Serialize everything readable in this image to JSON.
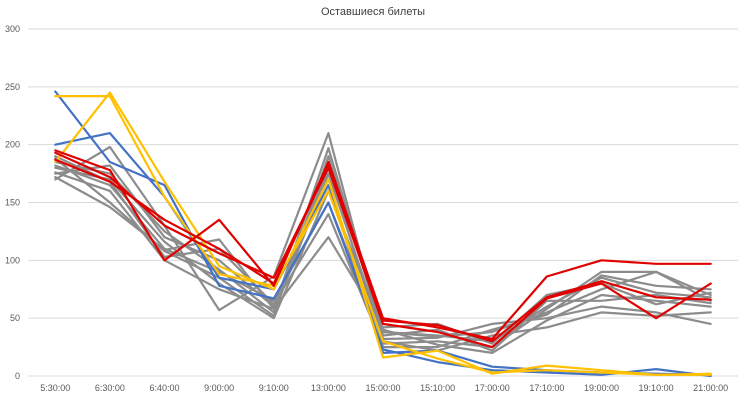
{
  "chart_data": {
    "type": "line",
    "title": "Оставшиеся билеты",
    "xlabel": "",
    "ylabel": "",
    "ylim": [
      0,
      300
    ],
    "yticks": [
      0,
      50,
      100,
      150,
      200,
      250,
      300
    ],
    "grid": true,
    "legend": "none",
    "categories": [
      "5:30:00",
      "6:30:00",
      "6:40:00",
      "9:00:00",
      "9:10:00",
      "13:00:00",
      "15:00:00",
      "15:10:00",
      "17:00:00",
      "17:10:00",
      "19:00:00",
      "19:10:00",
      "21:00:00"
    ],
    "colors": {
      "grey": "#8c8c8c",
      "blue": "#4472c4",
      "yellow": "#ffc000",
      "red": "#e00000"
    },
    "series": [
      {
        "color": "grey",
        "values": [
          170,
          198,
          130,
          57,
          86,
          210,
          32,
          33,
          45,
          50,
          60,
          55,
          45
        ]
      },
      {
        "color": "grey",
        "values": [
          172,
          146,
          109,
          118,
          58,
          197,
          38,
          34,
          38,
          55,
          75,
          90,
          70
        ]
      },
      {
        "color": "grey",
        "values": [
          188,
          150,
          108,
          85,
          52,
          190,
          38,
          35,
          30,
          60,
          85,
          72,
          68
        ]
      },
      {
        "color": "grey",
        "values": [
          175,
          182,
          120,
          100,
          60,
          180,
          28,
          30,
          25,
          58,
          90,
          90,
          65
        ]
      },
      {
        "color": "grey",
        "values": [
          185,
          175,
          125,
          92,
          55,
          175,
          35,
          40,
          22,
          65,
          65,
          70,
          63
        ]
      },
      {
        "color": "grey",
        "values": [
          180,
          170,
          116,
          80,
          50,
          160,
          40,
          27,
          20,
          48,
          70,
          65,
          60
        ]
      },
      {
        "color": "grey",
        "values": [
          182,
          165,
          110,
          90,
          65,
          150,
          30,
          22,
          35,
          42,
          55,
          52,
          55
        ]
      },
      {
        "color": "grey",
        "values": [
          176,
          160,
          100,
          75,
          58,
          120,
          42,
          45,
          28,
          70,
          80,
          62,
          72
        ]
      },
      {
        "color": "grey",
        "values": [
          190,
          168,
          103,
          110,
          62,
          140,
          25,
          25,
          40,
          53,
          87,
          78,
          75
        ]
      },
      {
        "color": "blue",
        "values": [
          246,
          185,
          165,
          78,
          67,
          150,
          23,
          12,
          5,
          3,
          1,
          6,
          0
        ]
      },
      {
        "color": "blue",
        "values": [
          200,
          210,
          155,
          85,
          75,
          165,
          20,
          22,
          8,
          5,
          3,
          2,
          1
        ]
      },
      {
        "color": "yellow",
        "values": [
          185,
          245,
          168,
          95,
          75,
          170,
          16,
          22,
          2,
          9,
          5,
          1,
          1
        ]
      },
      {
        "color": "yellow",
        "values": [
          242,
          242,
          155,
          88,
          78,
          160,
          30,
          15,
          3,
          5,
          3,
          1,
          2
        ]
      },
      {
        "color": "red",
        "values": [
          195,
          178,
          100,
          135,
          78,
          185,
          50,
          42,
          32,
          86,
          100,
          97,
          97
        ]
      },
      {
        "color": "red",
        "values": [
          193,
          172,
          130,
          106,
          85,
          180,
          45,
          38,
          25,
          67,
          80,
          50,
          80
        ]
      },
      {
        "color": "red",
        "values": [
          187,
          168,
          135,
          110,
          80,
          182,
          48,
          44,
          30,
          68,
          82,
          68,
          66
        ]
      }
    ]
  }
}
